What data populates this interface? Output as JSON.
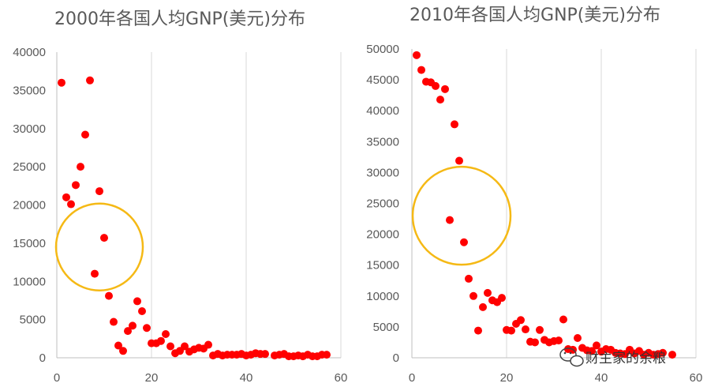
{
  "chart_data": [
    {
      "type": "scatter",
      "title": "2000年各国人均GNP(美元)分布",
      "xlim": [
        0,
        60
      ],
      "ylim": [
        0,
        40000
      ],
      "x_ticks": [
        0,
        20,
        40,
        60
      ],
      "y_ticks": [
        0,
        5000,
        10000,
        15000,
        20000,
        25000,
        30000,
        35000,
        40000
      ],
      "grid": "vertical",
      "marker_color": "#ff0000",
      "highlight_circle": {
        "color": "#f5b915",
        "cx": 9,
        "cy": 14500
      },
      "points": [
        [
          1,
          36000
        ],
        [
          2,
          21000
        ],
        [
          3,
          20100
        ],
        [
          4,
          22600
        ],
        [
          5,
          25000
        ],
        [
          6,
          29200
        ],
        [
          7,
          36300
        ],
        [
          8,
          11000
        ],
        [
          9,
          21800
        ],
        [
          10,
          15700
        ],
        [
          11,
          8100
        ],
        [
          12,
          4700
        ],
        [
          13,
          1600
        ],
        [
          14,
          900
        ],
        [
          15,
          3500
        ],
        [
          16,
          4200
        ],
        [
          17,
          7400
        ],
        [
          18,
          6100
        ],
        [
          19,
          3900
        ],
        [
          20,
          1900
        ],
        [
          21,
          1900
        ],
        [
          22,
          2200
        ],
        [
          23,
          3100
        ],
        [
          24,
          1500
        ],
        [
          25,
          600
        ],
        [
          26,
          900
        ],
        [
          27,
          1500
        ],
        [
          28,
          800
        ],
        [
          29,
          1100
        ],
        [
          30,
          1300
        ],
        [
          31,
          1200
        ],
        [
          32,
          1700
        ],
        [
          33,
          300
        ],
        [
          34,
          500
        ],
        [
          35,
          300
        ],
        [
          36,
          400
        ],
        [
          37,
          400
        ],
        [
          38,
          400
        ],
        [
          39,
          500
        ],
        [
          40,
          300
        ],
        [
          41,
          400
        ],
        [
          42,
          600
        ],
        [
          43,
          500
        ],
        [
          44,
          500
        ],
        [
          46,
          300
        ],
        [
          47,
          400
        ],
        [
          48,
          500
        ],
        [
          49,
          200
        ],
        [
          50,
          200
        ],
        [
          51,
          300
        ],
        [
          52,
          200
        ],
        [
          53,
          400
        ],
        [
          54,
          200
        ],
        [
          55,
          200
        ],
        [
          56,
          400
        ],
        [
          57,
          400
        ]
      ]
    },
    {
      "type": "scatter",
      "title": "2010年各国人均GNP(美元)分布",
      "xlim": [
        0,
        60
      ],
      "ylim": [
        0,
        50000
      ],
      "x_ticks": [
        0,
        20,
        40,
        60
      ],
      "y_ticks": [
        0,
        5000,
        10000,
        15000,
        20000,
        25000,
        30000,
        35000,
        40000,
        45000,
        50000
      ],
      "grid": "vertical",
      "marker_color": "#ff0000",
      "highlight_circle": {
        "color": "#f5b915",
        "cx": 10.5,
        "cy": 23000
      },
      "points": [
        [
          1,
          49000
        ],
        [
          2,
          46600
        ],
        [
          3,
          44700
        ],
        [
          4,
          44600
        ],
        [
          5,
          44000
        ],
        [
          6,
          41800
        ],
        [
          7,
          43500
        ],
        [
          8,
          22300
        ],
        [
          9,
          37800
        ],
        [
          10,
          31900
        ],
        [
          11,
          18700
        ],
        [
          12,
          12800
        ],
        [
          13,
          10000
        ],
        [
          14,
          4400
        ],
        [
          15,
          8200
        ],
        [
          16,
          10500
        ],
        [
          17,
          9300
        ],
        [
          18,
          9000
        ],
        [
          19,
          9700
        ],
        [
          20,
          4500
        ],
        [
          21,
          4400
        ],
        [
          22,
          5500
        ],
        [
          23,
          6100
        ],
        [
          24,
          4600
        ],
        [
          25,
          2600
        ],
        [
          26,
          2500
        ],
        [
          27,
          4500
        ],
        [
          28,
          2900
        ],
        [
          29,
          2500
        ],
        [
          30,
          2700
        ],
        [
          31,
          2800
        ],
        [
          32,
          6200
        ],
        [
          33,
          1400
        ],
        [
          34,
          1300
        ],
        [
          35,
          3200
        ],
        [
          36,
          1600
        ],
        [
          37,
          1200
        ],
        [
          38,
          1100
        ],
        [
          39,
          2000
        ],
        [
          40,
          1000
        ],
        [
          41,
          1400
        ],
        [
          42,
          1300
        ],
        [
          43,
          800
        ],
        [
          44,
          700
        ],
        [
          45,
          600
        ],
        [
          46,
          1300
        ],
        [
          47,
          700
        ],
        [
          48,
          1100
        ],
        [
          49,
          500
        ],
        [
          50,
          800
        ],
        [
          51,
          500
        ],
        [
          52,
          600
        ],
        [
          53,
          800
        ],
        [
          55,
          500
        ]
      ]
    }
  ],
  "watermark": {
    "icon": "wechat-icon",
    "text": "财主家的余粮"
  }
}
